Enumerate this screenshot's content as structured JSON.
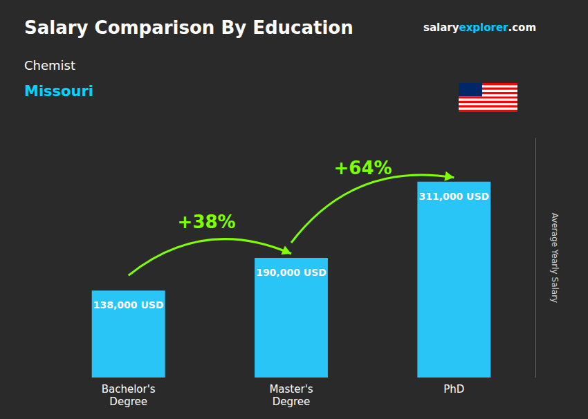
{
  "chart_data": {
    "type": "bar",
    "title": "Salary Comparison By Education",
    "subtitle": [
      {
        "text": "Chemist",
        "color": "#ffffff"
      },
      {
        "text": "Missouri",
        "color": "#00d4ff"
      }
    ],
    "ylabel": "Average Yearly Salary",
    "categories": [
      "Bachelor's\nDegree",
      "Master's\nDegree",
      "PhD"
    ],
    "values": [
      138000,
      190000,
      311000
    ],
    "value_labels": [
      "138,000 USD",
      "190,000 USD",
      "311,000 USD"
    ],
    "data_labels": true,
    "color": "#29c5f6",
    "ylim": [
      0,
      380000
    ],
    "tick_labels": "x",
    "grid": false,
    "legend": false,
    "annotations": [
      {
        "text": "+38%",
        "color": "#7fff00"
      },
      {
        "text": "+64%",
        "color": "#7fff00"
      }
    ],
    "website": [
      {
        "text": "salary",
        "color": "#ffffff"
      },
      {
        "text": "explorer",
        "color": "#00ccff"
      },
      {
        "text": ".com",
        "color": "#ffffff"
      }
    ]
  }
}
